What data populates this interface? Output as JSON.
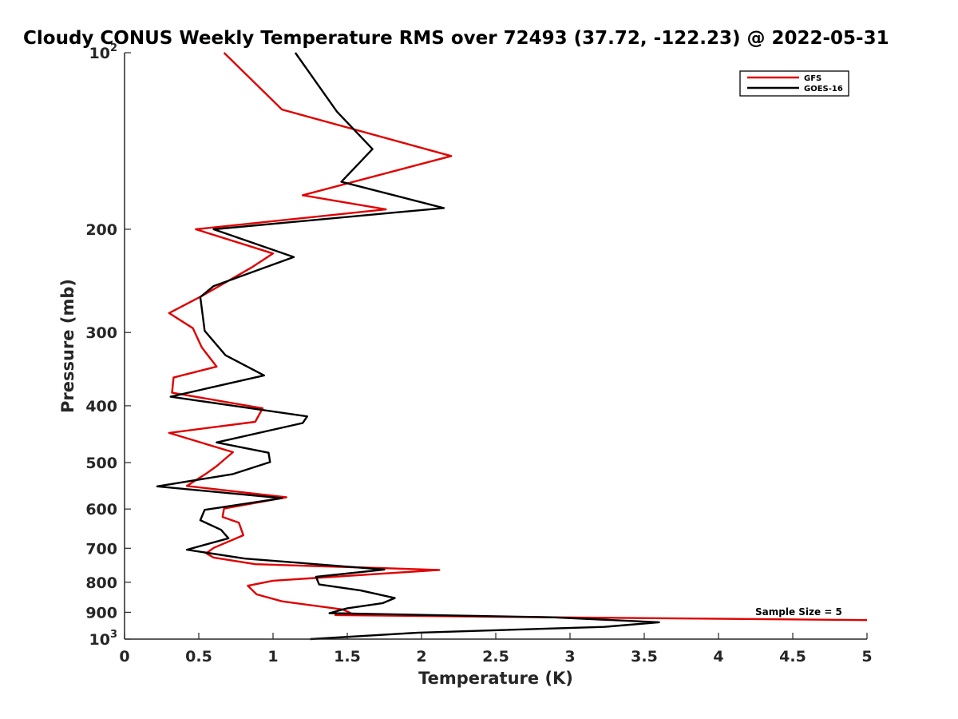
{
  "chart_data": {
    "type": "line",
    "title": "Cloudy CONUS Weekly Temperature RMS over 72493 (37.72, -122.23) @ 2022-05-31",
    "xlabel": "Temperature (K)",
    "ylabel": "Pressure (mb)",
    "xlim": [
      0,
      5
    ],
    "ylim": [
      100,
      1000
    ],
    "y_scale": "log",
    "y_reversed": true,
    "grid": false,
    "legend_position": "top-right",
    "x_ticks": [
      0,
      0.5,
      1,
      1.5,
      2,
      2.5,
      3,
      3.5,
      4,
      4.5,
      5
    ],
    "x_tick_labels": [
      "0",
      "0.5",
      "1",
      "1.5",
      "2",
      "2.5",
      "3",
      "3.5",
      "4",
      "4.5",
      "5"
    ],
    "y_ticks": [
      {
        "value": 100,
        "base": "10",
        "exp": "2"
      },
      {
        "value": 200,
        "label": "200"
      },
      {
        "value": 300,
        "label": "300"
      },
      {
        "value": 400,
        "label": "400"
      },
      {
        "value": 500,
        "label": "500"
      },
      {
        "value": 600,
        "label": "600"
      },
      {
        "value": 700,
        "label": "700"
      },
      {
        "value": 800,
        "label": "800"
      },
      {
        "value": 900,
        "label": "900"
      },
      {
        "value": 1000,
        "base": "10",
        "exp": "3"
      }
    ],
    "annotation": "Sample Size = 5",
    "series": [
      {
        "name": "GFS",
        "color": "#e00000",
        "points": [
          [
            0.67,
            100
          ],
          [
            1.06,
            125
          ],
          [
            2.2,
            150
          ],
          [
            1.2,
            175
          ],
          [
            1.76,
            185
          ],
          [
            0.48,
            200
          ],
          [
            1.0,
            220
          ],
          [
            0.86,
            232
          ],
          [
            0.52,
            260
          ],
          [
            0.3,
            278
          ],
          [
            0.46,
            295
          ],
          [
            0.52,
            318
          ],
          [
            0.62,
            343
          ],
          [
            0.33,
            358
          ],
          [
            0.32,
            380
          ],
          [
            0.93,
            404
          ],
          [
            0.88,
            426
          ],
          [
            0.3,
            445
          ],
          [
            0.73,
            480
          ],
          [
            0.62,
            507
          ],
          [
            0.55,
            522
          ],
          [
            0.42,
            548
          ],
          [
            1.09,
            573
          ],
          [
            0.67,
            599
          ],
          [
            0.66,
            619
          ],
          [
            0.77,
            633
          ],
          [
            0.8,
            665
          ],
          [
            0.6,
            699
          ],
          [
            0.55,
            714
          ],
          [
            0.6,
            726
          ],
          [
            0.88,
            745
          ],
          [
            2.12,
            762
          ],
          [
            1.0,
            795
          ],
          [
            0.83,
            811
          ],
          [
            0.89,
            839
          ],
          [
            1.06,
            862
          ],
          [
            1.47,
            890
          ],
          [
            1.52,
            902
          ],
          [
            1.42,
            910
          ],
          [
            2.88,
            918
          ],
          [
            5.0,
            928
          ]
        ]
      },
      {
        "name": "GOES-16",
        "color": "#000000",
        "points": [
          [
            1.15,
            100
          ],
          [
            1.43,
            126
          ],
          [
            1.67,
            146
          ],
          [
            1.46,
            166
          ],
          [
            2.15,
            184
          ],
          [
            0.6,
            200
          ],
          [
            1.14,
            223
          ],
          [
            0.6,
            250
          ],
          [
            0.51,
            261
          ],
          [
            0.54,
            298
          ],
          [
            0.68,
            328
          ],
          [
            0.94,
            355
          ],
          [
            0.31,
            386
          ],
          [
            1.23,
            417
          ],
          [
            1.2,
            428
          ],
          [
            0.62,
            462
          ],
          [
            0.97,
            481
          ],
          [
            0.98,
            499
          ],
          [
            0.73,
            523
          ],
          [
            0.22,
            549
          ],
          [
            1.06,
            575
          ],
          [
            0.54,
            602
          ],
          [
            0.51,
            627
          ],
          [
            0.65,
            651
          ],
          [
            0.7,
            673
          ],
          [
            0.42,
            704
          ],
          [
            0.81,
            729
          ],
          [
            1.75,
            761
          ],
          [
            1.29,
            783
          ],
          [
            1.31,
            807
          ],
          [
            1.59,
            826
          ],
          [
            1.82,
            851
          ],
          [
            1.74,
            868
          ],
          [
            1.5,
            886
          ],
          [
            1.38,
            903
          ],
          [
            2.88,
            918
          ],
          [
            3.6,
            936
          ],
          [
            3.23,
            953
          ],
          [
            1.98,
            975
          ],
          [
            1.25,
            1000
          ]
        ]
      }
    ]
  }
}
